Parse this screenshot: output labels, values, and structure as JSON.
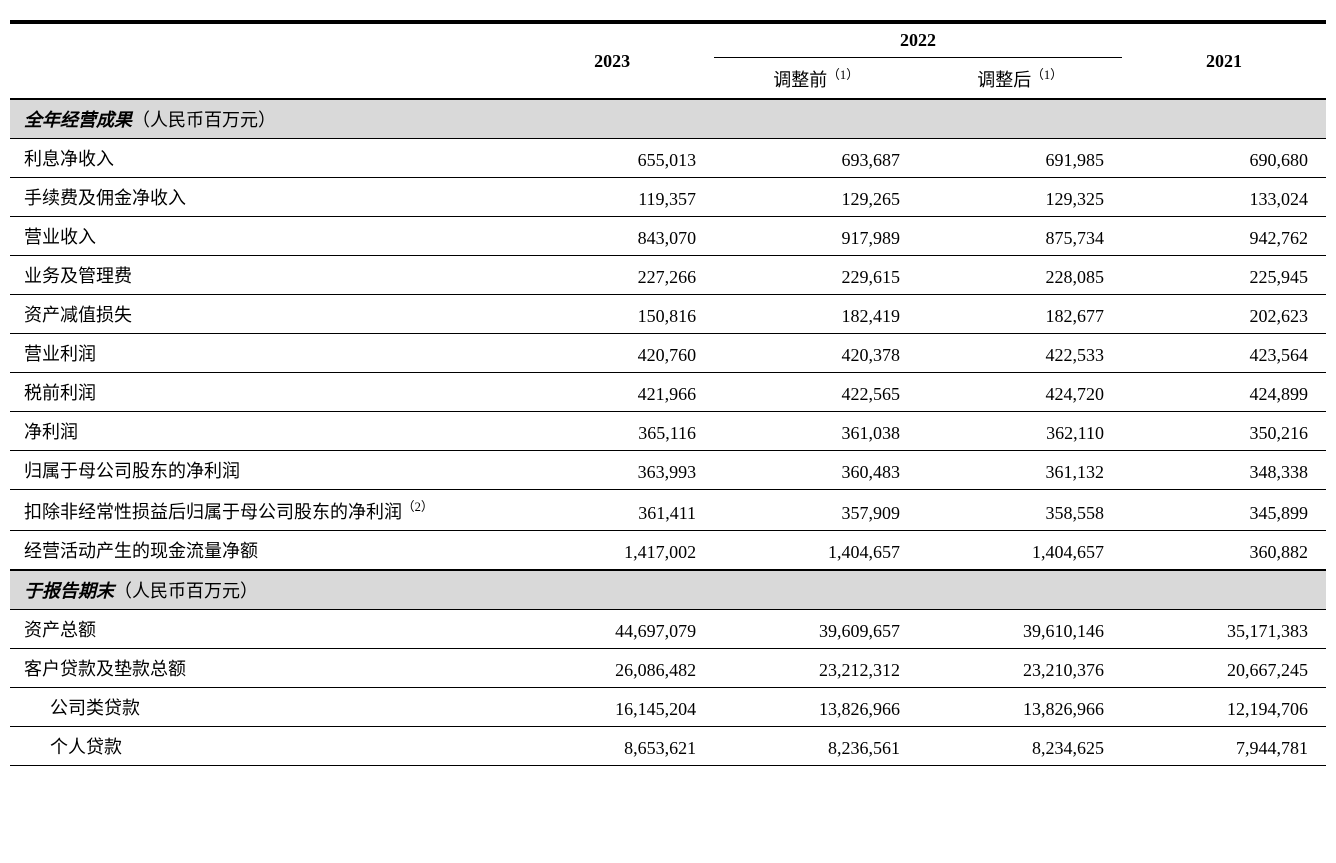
{
  "header": {
    "y2023": "2023",
    "y2022": "2022",
    "y2022_pre": "调整前",
    "y2022_post": "调整后",
    "y2021": "2021",
    "note1": "（1）"
  },
  "sections": [
    {
      "title": "全年经营成果",
      "unit": "（人民币百万元）",
      "rows": [
        {
          "label": "利息净收入",
          "v": [
            "655,013",
            "693,687",
            "691,985",
            "690,680"
          ]
        },
        {
          "label": "手续费及佣金净收入",
          "v": [
            "119,357",
            "129,265",
            "129,325",
            "133,024"
          ]
        },
        {
          "label": "营业收入",
          "v": [
            "843,070",
            "917,989",
            "875,734",
            "942,762"
          ]
        },
        {
          "label": "业务及管理费",
          "v": [
            "227,266",
            "229,615",
            "228,085",
            "225,945"
          ]
        },
        {
          "label": "资产减值损失",
          "v": [
            "150,816",
            "182,419",
            "182,677",
            "202,623"
          ]
        },
        {
          "label": "营业利润",
          "v": [
            "420,760",
            "420,378",
            "422,533",
            "423,564"
          ]
        },
        {
          "label": "税前利润",
          "v": [
            "421,966",
            "422,565",
            "424,720",
            "424,899"
          ]
        },
        {
          "label": "净利润",
          "v": [
            "365,116",
            "361,038",
            "362,110",
            "350,216"
          ]
        },
        {
          "label": "归属于母公司股东的净利润",
          "v": [
            "363,993",
            "360,483",
            "361,132",
            "348,338"
          ]
        },
        {
          "label": "扣除非经常性损益后归属于母公司股东的净利润",
          "sup": "（2）",
          "v": [
            "361,411",
            "357,909",
            "358,558",
            "345,899"
          ]
        },
        {
          "label": "经营活动产生的现金流量净额",
          "v": [
            "1,417,002",
            "1,404,657",
            "1,404,657",
            "360,882"
          ]
        }
      ]
    },
    {
      "title": "于报告期末",
      "unit": "（人民币百万元）",
      "rows": [
        {
          "label": "资产总额",
          "v": [
            "44,697,079",
            "39,609,657",
            "39,610,146",
            "35,171,383"
          ]
        },
        {
          "label": "客户贷款及垫款总额",
          "v": [
            "26,086,482",
            "23,212,312",
            "23,210,376",
            "20,667,245"
          ]
        },
        {
          "label": "公司类贷款",
          "indent": true,
          "v": [
            "16,145,204",
            "13,826,966",
            "13,826,966",
            "12,194,706"
          ]
        },
        {
          "label": "个人贷款",
          "indent": true,
          "v": [
            "8,653,621",
            "8,236,561",
            "8,234,625",
            "7,944,781"
          ]
        }
      ]
    }
  ]
}
